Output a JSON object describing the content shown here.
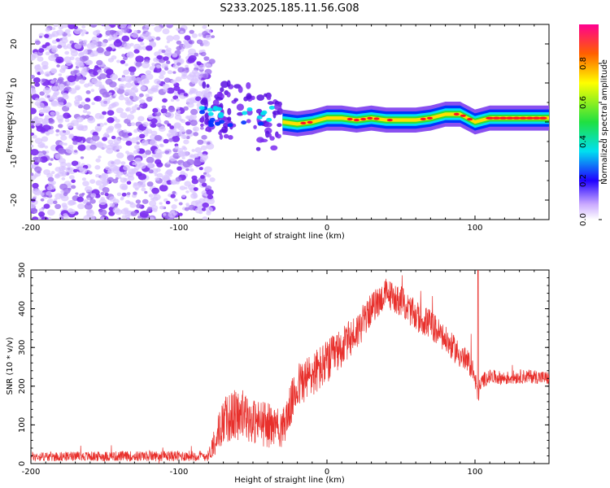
{
  "title": "S233.2025.185.11.56.G08",
  "colors": {
    "snr_line": "#e8302c",
    "purple": "#7b2cf0",
    "blue": "#0033ff",
    "cyan": "#00e0f0",
    "green": "#30e030",
    "yellow": "#ffe000",
    "red": "#ff1020",
    "magenta": "#ff0080"
  },
  "chart_data": [
    {
      "type": "heatmap",
      "title": "",
      "xlabel": "Height of straight line (km)",
      "ylabel": "Frequency (Hz)",
      "xlim": [
        -200,
        150
      ],
      "ylim": [
        -25,
        25
      ],
      "x_ticks": [
        -200,
        -100,
        0,
        100
      ],
      "y_ticks": [
        -20,
        -10,
        0,
        10,
        20
      ],
      "colorbar": {
        "label": "Normalized spectral amplitude",
        "ticks": [
          "0.0",
          "0.2",
          "0.4",
          "0.6",
          "0.8"
        ],
        "range": [
          0,
          1
        ]
      },
      "ridge": {
        "description_x": [
          -85,
          -70,
          -55,
          -40,
          -30,
          -20,
          -10,
          0,
          10,
          20,
          30,
          40,
          50,
          60,
          70,
          80,
          90,
          100,
          110,
          120,
          130,
          140,
          150
        ],
        "freq_hz": [
          2,
          1,
          0.5,
          1,
          0,
          -0.5,
          0,
          1,
          1,
          0.5,
          1,
          0.5,
          0.5,
          0.5,
          1,
          2,
          2,
          0,
          1,
          1,
          1,
          1,
          1
        ]
      },
      "noise_region_x": [
        -200,
        -80
      ]
    },
    {
      "type": "line",
      "title": "",
      "xlabel": "Height of straight line (km)",
      "ylabel": "SNR (10 * v/v)",
      "xlim": [
        -200,
        150
      ],
      "ylim": [
        0,
        500
      ],
      "x_ticks": [
        -200,
        -100,
        0,
        100
      ],
      "y_ticks": [
        0,
        100,
        200,
        300,
        400,
        500
      ],
      "envelope": {
        "x": [
          -200,
          -80,
          -76,
          -70,
          -60,
          -50,
          -40,
          -30,
          -20,
          -10,
          0,
          10,
          20,
          30,
          40,
          50,
          60,
          70,
          80,
          90,
          98,
          102,
          105,
          110,
          120,
          130,
          140,
          150
        ],
        "mean": [
          18,
          20,
          60,
          110,
          130,
          110,
          100,
          90,
          200,
          230,
          260,
          300,
          340,
          400,
          440,
          420,
          380,
          360,
          320,
          280,
          250,
          180,
          215,
          225,
          220,
          225,
          225,
          220
        ],
        "spread": [
          12,
          14,
          40,
          60,
          70,
          60,
          60,
          50,
          60,
          60,
          60,
          50,
          50,
          40,
          40,
          40,
          40,
          40,
          35,
          35,
          30,
          30,
          20,
          18,
          18,
          18,
          18,
          18
        ]
      }
    }
  ]
}
